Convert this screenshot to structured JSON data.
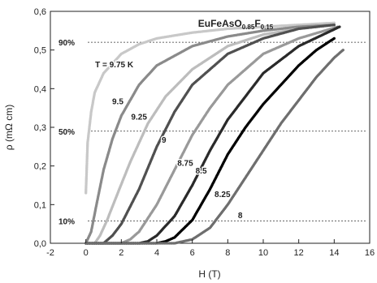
{
  "chart_data": {
    "type": "scatter",
    "title": "EuFeAsO0.85F0.15",
    "title_parts": {
      "base1": "EuFeAsO",
      "sub1": "0.85",
      "base2": "F",
      "sub2": "0.15"
    },
    "xlabel": "H (T)",
    "ylabel": "ρ (mΩ cm)",
    "xlim": [
      -2,
      16
    ],
    "ylim": [
      0,
      0.6
    ],
    "xticks": [
      "-2",
      "0",
      "2",
      "4",
      "6",
      "8",
      "10",
      "12",
      "14",
      "16"
    ],
    "yticks": [
      "0,0",
      "0,1",
      "0,2",
      "0,3",
      "0,4",
      "0,5",
      "0,6"
    ],
    "reference_lines": [
      {
        "label": "90%",
        "y": 0.52
      },
      {
        "label": "50%",
        "y": 0.29
      },
      {
        "label": "10%",
        "y": 0.058
      }
    ],
    "series": [
      {
        "name": "T = 9.75 K",
        "color": "#c8c8c8",
        "x": [
          0,
          0.1,
          0.3,
          0.5,
          1,
          2,
          3,
          4,
          6,
          8,
          10,
          12,
          14
        ],
        "y": [
          0.13,
          0.26,
          0.34,
          0.39,
          0.44,
          0.49,
          0.515,
          0.53,
          0.545,
          0.555,
          0.56,
          0.565,
          0.57
        ]
      },
      {
        "name": "9.5",
        "color": "#8a8a8a",
        "x": [
          0,
          0.3,
          0.6,
          1,
          1.5,
          2,
          3,
          4,
          6,
          8,
          10,
          12,
          14
        ],
        "y": [
          0.0,
          0.03,
          0.1,
          0.19,
          0.27,
          0.33,
          0.41,
          0.46,
          0.51,
          0.535,
          0.55,
          0.56,
          0.565
        ]
      },
      {
        "name": "9.25",
        "color": "#bdbdbd",
        "x": [
          0,
          0.5,
          0.8,
          1.2,
          1.8,
          2.5,
          3.5,
          4.5,
          6,
          8,
          10,
          12,
          14
        ],
        "y": [
          0.0,
          0.0,
          0.02,
          0.06,
          0.13,
          0.21,
          0.31,
          0.38,
          0.45,
          0.51,
          0.54,
          0.555,
          0.565
        ]
      },
      {
        "name": "9",
        "color": "#505050",
        "x": [
          0,
          0.5,
          1,
          1.5,
          2,
          3,
          4,
          5,
          6,
          8,
          10,
          12,
          14
        ],
        "y": [
          0.0,
          0.0,
          0.0,
          0.02,
          0.05,
          0.14,
          0.25,
          0.34,
          0.41,
          0.49,
          0.53,
          0.555,
          0.565
        ]
      },
      {
        "name": "8.75",
        "color": "#999999",
        "x": [
          0,
          1,
          2,
          2.5,
          3,
          4,
          5,
          6,
          7,
          8,
          10,
          12,
          14.2
        ],
        "y": [
          0.0,
          0.0,
          0.0,
          0.01,
          0.03,
          0.1,
          0.19,
          0.28,
          0.35,
          0.41,
          0.49,
          0.53,
          0.56
        ]
      },
      {
        "name": "8.5",
        "color": "#2a2a2a",
        "x": [
          0,
          2,
          3,
          3.5,
          4,
          5,
          6,
          7,
          8,
          9,
          10,
          12,
          14.3
        ],
        "y": [
          0.0,
          0.0,
          0.0,
          0.005,
          0.02,
          0.07,
          0.15,
          0.24,
          0.32,
          0.38,
          0.44,
          0.51,
          0.56
        ]
      },
      {
        "name": "8.25",
        "color": "#000000",
        "x": [
          0,
          3,
          4,
          4.5,
          5,
          6,
          7,
          8,
          9,
          10,
          11,
          12,
          13,
          14
        ],
        "y": [
          0.0,
          0.0,
          0.0,
          0.005,
          0.015,
          0.06,
          0.14,
          0.23,
          0.3,
          0.36,
          0.41,
          0.46,
          0.5,
          0.53
        ]
      },
      {
        "name": "8",
        "color": "#6e6e6e",
        "x": [
          0,
          4,
          5,
          6,
          7,
          8,
          9,
          10,
          11,
          12,
          13,
          14,
          14.5
        ],
        "y": [
          0.0,
          0.0,
          0.0,
          0.01,
          0.04,
          0.1,
          0.17,
          0.24,
          0.31,
          0.37,
          0.43,
          0.48,
          0.5
        ]
      }
    ],
    "annotations": [
      {
        "text": "T = 9.75 K",
        "x": 1.6,
        "y": 0.455
      },
      {
        "text": "9.5",
        "x": 1.8,
        "y": 0.36
      },
      {
        "text": "9.25",
        "x": 3.0,
        "y": 0.32
      },
      {
        "text": "9",
        "x": 4.4,
        "y": 0.26
      },
      {
        "text": "8.75",
        "x": 5.6,
        "y": 0.2
      },
      {
        "text": "8.5",
        "x": 6.5,
        "y": 0.18
      },
      {
        "text": "8.25",
        "x": 7.7,
        "y": 0.12
      },
      {
        "text": "8",
        "x": 8.7,
        "y": 0.065
      }
    ]
  }
}
